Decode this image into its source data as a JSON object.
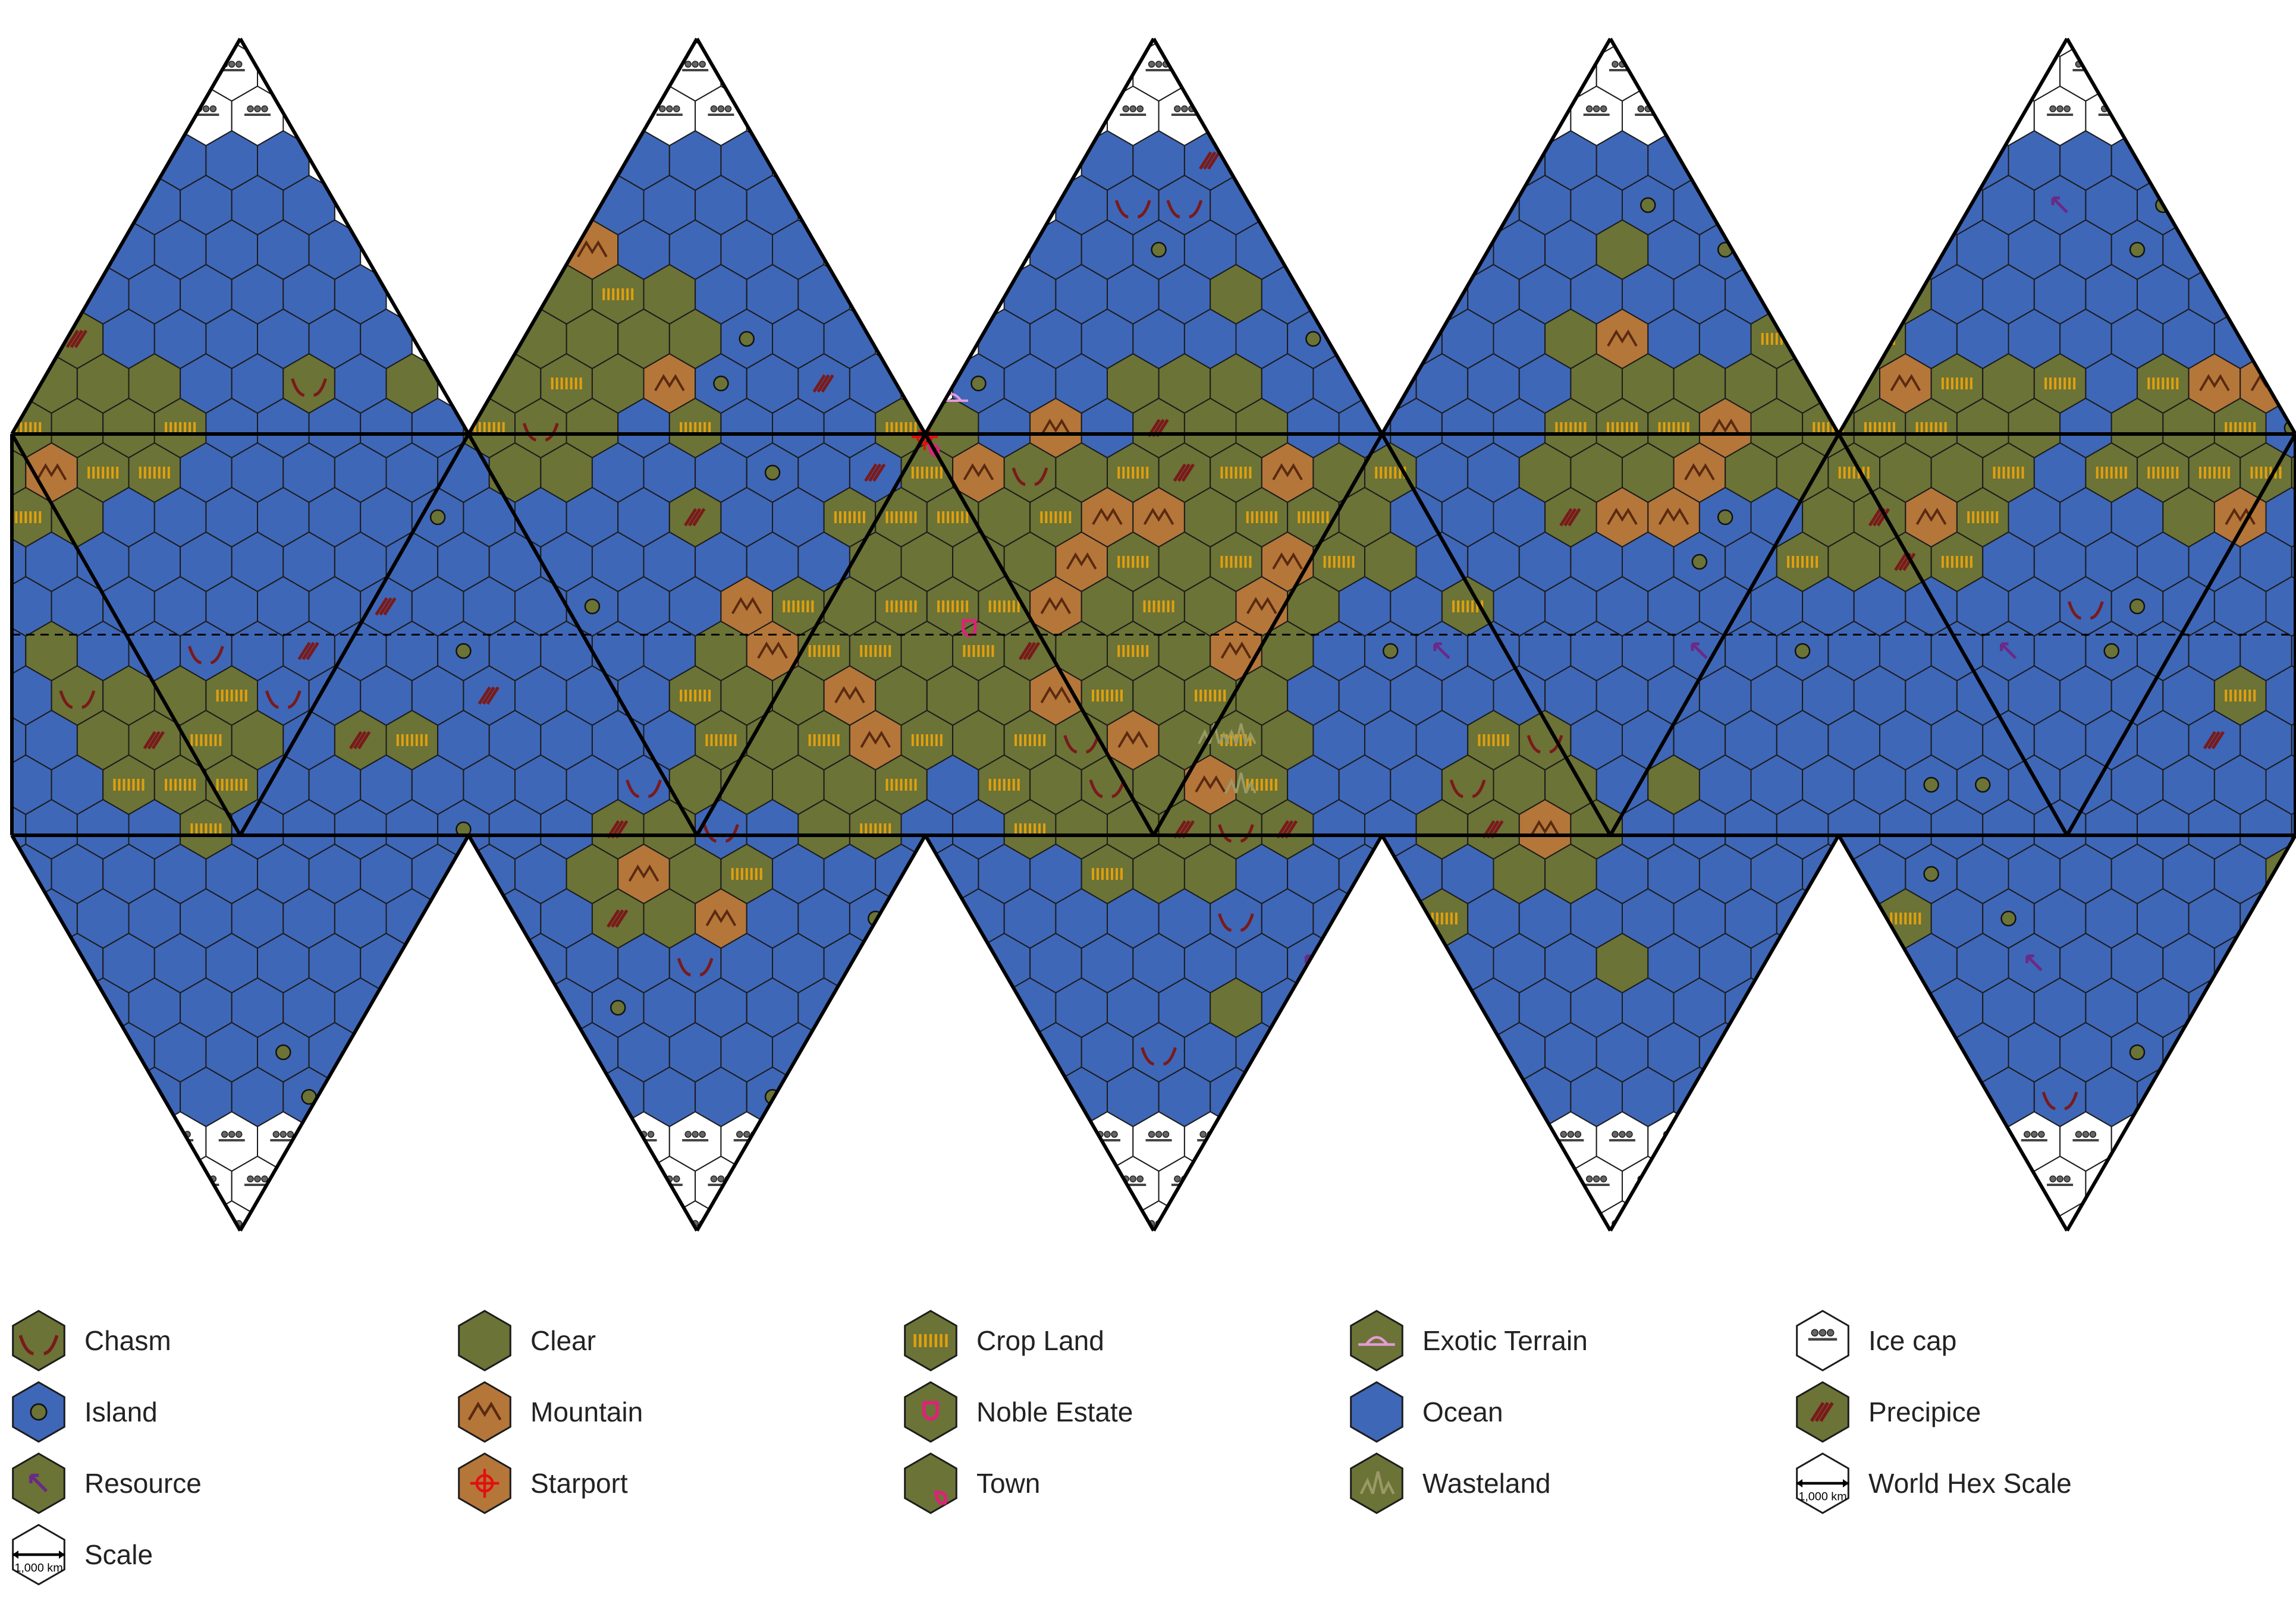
{
  "colors": {
    "ocean": "#3f67b8",
    "land": "#6b7336",
    "mountain": "#b5763a",
    "icecap": "#ffffff",
    "hex_stroke": "#1c1c1c",
    "crop": "#e0a010",
    "chasm": "#7a1a1a",
    "resource": "#6a2a86",
    "noble": "#e0207a",
    "starport": "#e01010",
    "exotic": "#e49ad8",
    "wasteland": "#9a9a66",
    "grid_line": "#000000"
  },
  "legend": {
    "items": [
      {
        "label": "Chasm",
        "terrain": "land",
        "marker": "chasm"
      },
      {
        "label": "Clear",
        "terrain": "land",
        "marker": "none"
      },
      {
        "label": "Crop Land",
        "terrain": "land",
        "marker": "crop"
      },
      {
        "label": "Exotic Terrain",
        "terrain": "land",
        "marker": "exotic"
      },
      {
        "label": "Ice cap",
        "terrain": "icecap",
        "marker": "ice"
      },
      {
        "label": "Island",
        "terrain": "ocean",
        "marker": "island"
      },
      {
        "label": "Mountain",
        "terrain": "mountain",
        "marker": "mountain"
      },
      {
        "label": "Noble Estate",
        "terrain": "land",
        "marker": "noble"
      },
      {
        "label": "Ocean",
        "terrain": "ocean",
        "marker": "none"
      },
      {
        "label": "Precipice",
        "terrain": "land",
        "marker": "precipice"
      },
      {
        "label": "Resource",
        "terrain": "land",
        "marker": "resource"
      },
      {
        "label": "Starport",
        "terrain": "mountain",
        "marker": "starport"
      },
      {
        "label": "Town",
        "terrain": "land",
        "marker": "town"
      },
      {
        "label": "Wasteland",
        "terrain": "land",
        "marker": "wasteland"
      },
      {
        "label": "World Hex Scale",
        "terrain": "icecap",
        "marker": "scale"
      },
      {
        "label": "Scale",
        "terrain": "icecap",
        "marker": "scale"
      }
    ],
    "scale_text": "1,000 km"
  }
}
